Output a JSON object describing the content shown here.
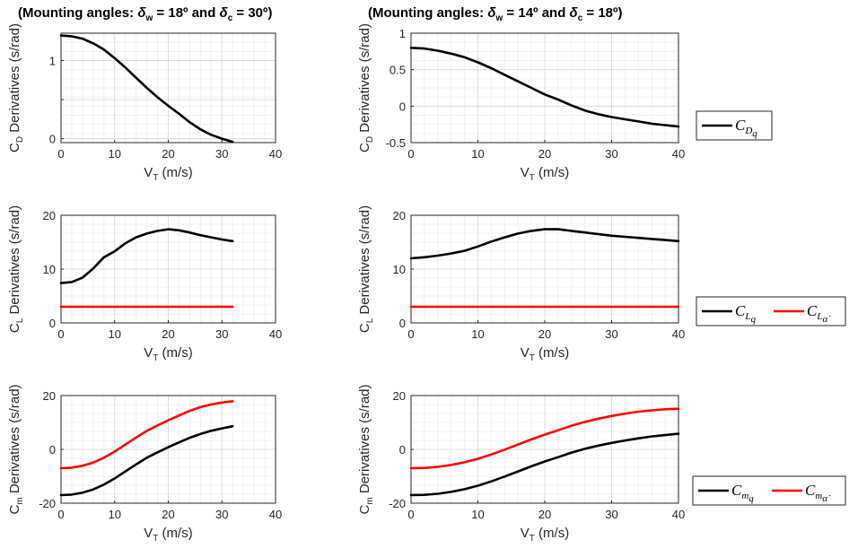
{
  "titles": {
    "left": {
      "prefix": "(Mounting angles: ",
      "d1": "δ",
      "s1": "w",
      "mid": " = 18º and ",
      "d2": "δ",
      "s2": "c",
      "suffix": " = 30º)"
    },
    "right": {
      "prefix": "(Mounting angles: ",
      "d1": "δ",
      "s1": "w",
      "mid": " = 14º and ",
      "d2": "δ",
      "s2": "c",
      "suffix": " = 18º)"
    }
  },
  "xlabel": {
    "main": "V",
    "sub": "T",
    "rest": " (m/s)"
  },
  "ylabels": [
    {
      "main": "C",
      "sub": "D",
      "rest": " Derivatives (s/rad)"
    },
    {
      "main": "C",
      "sub": "L",
      "rest": " Derivatives (s/rad)"
    },
    {
      "main": "C",
      "sub": "m",
      "rest": " Derivatives (s/rad)"
    }
  ],
  "legends": [
    [
      {
        "main": "C",
        "sub": "D",
        "sub2": "q",
        "color": "#000000"
      }
    ],
    [
      {
        "main": "C",
        "sub": "L",
        "sub2": "q",
        "color": "#000000"
      },
      {
        "main": "C",
        "sub": "L",
        "sub2": "α̇",
        "color": "#ff0000"
      }
    ],
    [
      {
        "main": "C",
        "sub": "m",
        "sub2": "q",
        "color": "#000000"
      },
      {
        "main": "C",
        "sub": "m",
        "sub2": "α̇",
        "color": "#ff0000"
      }
    ]
  ],
  "chart_data": [
    {
      "type": "line",
      "row": 0,
      "col": 0,
      "xlim": [
        0,
        40
      ],
      "ylim": [
        -0.05,
        1.35
      ],
      "xticks": [
        0,
        10,
        20,
        30,
        40
      ],
      "yticks": [
        0,
        0.5,
        1
      ],
      "yticklabels": [
        "0",
        "",
        "1"
      ],
      "grid": true,
      "series": [
        {
          "color": "#000000",
          "x": [
            0,
            2,
            4,
            6,
            8,
            10,
            12,
            14,
            16,
            18,
            20,
            22,
            24,
            26,
            28,
            30,
            32
          ],
          "y": [
            1.32,
            1.31,
            1.28,
            1.22,
            1.14,
            1.03,
            0.91,
            0.78,
            0.65,
            0.53,
            0.42,
            0.32,
            0.21,
            0.12,
            0.05,
            0.0,
            -0.04
          ]
        }
      ]
    },
    {
      "type": "line",
      "row": 0,
      "col": 1,
      "xlim": [
        0,
        40
      ],
      "ylim": [
        -0.5,
        1
      ],
      "xticks": [
        0,
        10,
        20,
        30,
        40
      ],
      "yticks": [
        -0.5,
        0,
        0.5,
        1
      ],
      "yticklabels": [
        "-0.5",
        "0",
        "0.5",
        "1"
      ],
      "grid": true,
      "series": [
        {
          "color": "#000000",
          "x": [
            0,
            2,
            4,
            6,
            8,
            10,
            12,
            14,
            16,
            18,
            20,
            22,
            24,
            26,
            28,
            30,
            32,
            34,
            36,
            38,
            40
          ],
          "y": [
            0.8,
            0.79,
            0.76,
            0.72,
            0.67,
            0.6,
            0.52,
            0.43,
            0.34,
            0.25,
            0.16,
            0.09,
            0.01,
            -0.06,
            -0.11,
            -0.15,
            -0.18,
            -0.21,
            -0.24,
            -0.26,
            -0.28
          ]
        }
      ]
    },
    {
      "type": "line",
      "row": 1,
      "col": 0,
      "xlim": [
        0,
        40
      ],
      "ylim": [
        0,
        20
      ],
      "xticks": [
        0,
        10,
        20,
        30,
        40
      ],
      "yticks": [
        0,
        10,
        20
      ],
      "yticklabels": [
        "0",
        "10",
        "20"
      ],
      "grid": true,
      "series": [
        {
          "color": "#000000",
          "x": [
            0,
            2,
            4,
            6,
            8,
            10,
            12,
            14,
            16,
            18,
            20,
            22,
            24,
            26,
            28,
            30,
            32
          ],
          "y": [
            7.4,
            7.6,
            8.4,
            10.1,
            12.2,
            13.3,
            14.8,
            15.9,
            16.6,
            17.1,
            17.4,
            17.2,
            16.8,
            16.3,
            15.9,
            15.5,
            15.2
          ]
        },
        {
          "color": "#ff0000",
          "x": [
            0,
            32
          ],
          "y": [
            3.0,
            3.0
          ]
        }
      ]
    },
    {
      "type": "line",
      "row": 1,
      "col": 1,
      "xlim": [
        0,
        40
      ],
      "ylim": [
        0,
        20
      ],
      "xticks": [
        0,
        10,
        20,
        30,
        40
      ],
      "yticks": [
        0,
        10,
        20
      ],
      "yticklabels": [
        "0",
        "10",
        "20"
      ],
      "grid": true,
      "series": [
        {
          "color": "#000000",
          "x": [
            0,
            2,
            4,
            6,
            8,
            10,
            12,
            14,
            16,
            18,
            20,
            22,
            24,
            26,
            28,
            30,
            32,
            34,
            36,
            38,
            40
          ],
          "y": [
            12.0,
            12.2,
            12.5,
            12.9,
            13.4,
            14.2,
            15.1,
            15.9,
            16.6,
            17.1,
            17.4,
            17.4,
            17.1,
            16.8,
            16.5,
            16.2,
            16.0,
            15.8,
            15.6,
            15.4,
            15.2
          ]
        },
        {
          "color": "#ff0000",
          "x": [
            0,
            40
          ],
          "y": [
            3.0,
            3.0
          ]
        }
      ]
    },
    {
      "type": "line",
      "row": 2,
      "col": 0,
      "xlim": [
        0,
        40
      ],
      "ylim": [
        -20,
        20
      ],
      "xticks": [
        0,
        10,
        20,
        30,
        40
      ],
      "yticks": [
        -20,
        0,
        20
      ],
      "yticklabels": [
        "-20",
        "0",
        "20"
      ],
      "grid": true,
      "series": [
        {
          "color": "#000000",
          "x": [
            0,
            2,
            4,
            6,
            8,
            10,
            12,
            14,
            16,
            18,
            20,
            22,
            24,
            26,
            28,
            30,
            32
          ],
          "y": [
            -17.0,
            -16.8,
            -16.1,
            -14.9,
            -13.1,
            -10.8,
            -8.2,
            -5.6,
            -3.1,
            -1.1,
            0.8,
            2.6,
            4.3,
            5.7,
            6.9,
            7.8,
            8.6
          ]
        },
        {
          "color": "#ff0000",
          "x": [
            0,
            2,
            4,
            6,
            8,
            10,
            12,
            14,
            16,
            18,
            20,
            22,
            24,
            26,
            28,
            30,
            32
          ],
          "y": [
            -7.0,
            -6.8,
            -6.1,
            -4.9,
            -3.1,
            -0.8,
            1.8,
            4.4,
            6.9,
            8.9,
            10.8,
            12.6,
            14.3,
            15.7,
            16.7,
            17.4,
            17.9
          ]
        }
      ]
    },
    {
      "type": "line",
      "row": 2,
      "col": 1,
      "xlim": [
        0,
        40
      ],
      "ylim": [
        -20,
        20
      ],
      "xticks": [
        0,
        10,
        20,
        30,
        40
      ],
      "yticks": [
        -20,
        0,
        20
      ],
      "yticklabels": [
        "-20",
        "0",
        "20"
      ],
      "grid": true,
      "series": [
        {
          "color": "#000000",
          "x": [
            0,
            2,
            4,
            6,
            8,
            10,
            12,
            14,
            16,
            18,
            20,
            22,
            24,
            26,
            28,
            30,
            32,
            34,
            36,
            38,
            40
          ],
          "y": [
            -17.0,
            -16.9,
            -16.5,
            -15.8,
            -14.8,
            -13.5,
            -11.9,
            -10.1,
            -8.2,
            -6.3,
            -4.5,
            -2.9,
            -1.2,
            0.2,
            1.4,
            2.4,
            3.3,
            4.1,
            4.8,
            5.3,
            5.8
          ]
        },
        {
          "color": "#ff0000",
          "x": [
            0,
            2,
            4,
            6,
            8,
            10,
            12,
            14,
            16,
            18,
            20,
            22,
            24,
            26,
            28,
            30,
            32,
            34,
            36,
            38,
            40
          ],
          "y": [
            -7.0,
            -6.9,
            -6.5,
            -5.8,
            -4.8,
            -3.5,
            -1.9,
            -0.1,
            1.8,
            3.7,
            5.5,
            7.1,
            8.8,
            10.2,
            11.4,
            12.4,
            13.3,
            14.0,
            14.5,
            14.9,
            15.1
          ]
        }
      ]
    }
  ]
}
